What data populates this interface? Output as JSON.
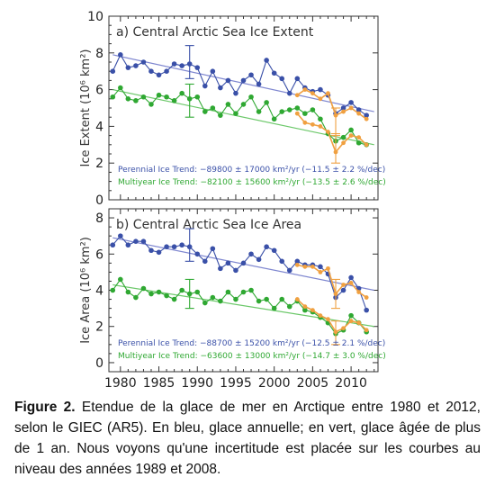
{
  "colors": {
    "perennial": "#3a50a8",
    "multiyear": "#2fa832",
    "perennial_trend": "#7f87d0",
    "multiyear_trend": "#6cc86a",
    "overlay": "#f0a040",
    "frame": "#333333"
  },
  "x_ticks": [
    "1980",
    "1985",
    "1990",
    "1995",
    "2000",
    "2005",
    "2010"
  ],
  "caption": {
    "label": "Figure 2.",
    "text": " Etendue de la glace de mer en Arctique entre 1980 et 2012, selon le GIEC (AR5). En bleu, glace annuelle; en vert, glace âgée de plus de 1 an. Nous voyons qu'une incertitude est placée sur les courbes au niveau des années 1989 et 2008."
  },
  "chart_data": [
    {
      "type": "line",
      "title": "a) Central Arctic Sea Ice Extent",
      "ylabel": "Ice Extent (10⁶ km²)",
      "xlabel": "",
      "xlim": [
        1978.5,
        2013.5
      ],
      "ylim": [
        0,
        10
      ],
      "yticks": [
        0,
        2,
        4,
        6,
        8,
        10
      ],
      "trend_texts": [
        "Perennial Ice Trend: −89800 ± 17000 km²/yr (−11.5 ± 2.2 %/dec)",
        "Multiyear Ice Trend: −82100 ± 15600 km²/yr (−13.5 ± 2.6 %/dec)"
      ],
      "series": [
        {
          "name": "Perennial Ice",
          "x": [
            1979,
            1980,
            1981,
            1982,
            1983,
            1984,
            1985,
            1986,
            1987,
            1988,
            1989,
            1990,
            1991,
            1992,
            1993,
            1994,
            1995,
            1996,
            1997,
            1998,
            1999,
            2000,
            2001,
            2002,
            2003,
            2004,
            2005,
            2006,
            2007,
            2008,
            2009,
            2010,
            2011,
            2012
          ],
          "values": [
            7.0,
            7.9,
            7.2,
            7.3,
            7.5,
            7.0,
            6.8,
            7.0,
            7.4,
            7.3,
            7.4,
            7.2,
            6.2,
            7.0,
            6.1,
            6.5,
            5.8,
            6.5,
            6.8,
            6.3,
            7.6,
            6.9,
            6.6,
            5.8,
            6.6,
            6.1,
            5.9,
            6.0,
            5.7,
            4.7,
            5.0,
            5.3,
            4.9,
            4.6
          ],
          "trend": [
            [
              1979,
              7.9
            ],
            [
              2013,
              4.8
            ]
          ],
          "error_bar": {
            "x": 1989,
            "low": 6.6,
            "high": 8.4
          }
        },
        {
          "name": "Multiyear Ice",
          "x": [
            1979,
            1980,
            1981,
            1982,
            1983,
            1984,
            1985,
            1986,
            1987,
            1988,
            1989,
            1990,
            1991,
            1992,
            1993,
            1994,
            1995,
            1996,
            1997,
            1998,
            1999,
            2000,
            2001,
            2002,
            2003,
            2004,
            2005,
            2006,
            2007,
            2008,
            2009,
            2010,
            2011,
            2012
          ],
          "values": [
            5.6,
            6.1,
            5.5,
            5.4,
            5.6,
            5.2,
            5.7,
            5.6,
            5.4,
            5.8,
            5.5,
            5.6,
            4.8,
            5.0,
            4.6,
            5.2,
            4.7,
            5.2,
            5.6,
            4.8,
            5.3,
            4.4,
            4.8,
            4.9,
            5.0,
            4.7,
            4.9,
            4.4,
            3.6,
            3.2,
            3.4,
            3.8,
            3.1,
            3.0
          ],
          "trend": [
            [
              1979,
              6.0
            ],
            [
              2013,
              3.0
            ]
          ],
          "error_bar": {
            "x": 1989,
            "low": 4.5,
            "high": 6.3
          }
        },
        {
          "name": "Perennial Ice (orange)",
          "x": [
            2003,
            2004,
            2005,
            2006,
            2007,
            2008,
            2009,
            2010,
            2011,
            2012
          ],
          "values": [
            5.7,
            6.0,
            5.8,
            5.5,
            5.8,
            4.6,
            4.8,
            5.0,
            4.7,
            4.4
          ],
          "error_bar": {
            "x": 2008,
            "low": 3.5,
            "high": 5.0
          }
        },
        {
          "name": "Multiyear Ice (orange)",
          "x": [
            2003,
            2004,
            2005,
            2006,
            2007,
            2008,
            2009,
            2010,
            2011,
            2012
          ],
          "values": [
            4.7,
            4.2,
            4.1,
            4.0,
            3.7,
            2.6,
            3.1,
            3.5,
            3.4,
            3.0
          ],
          "error_bar": {
            "x": 2008,
            "low": 2.0,
            "high": 3.6
          }
        }
      ]
    },
    {
      "type": "line",
      "title": "b) Central Arctic Sea Ice Area",
      "ylabel": "Ice Area (10⁶ km²)",
      "xlabel": "",
      "xlim": [
        1978.5,
        2013.5
      ],
      "ylim": [
        -0.5,
        8.5
      ],
      "yticks": [
        0,
        2,
        4,
        6,
        8
      ],
      "trend_texts": [
        "Perennial Ice Trend: −88700 ± 15200 km²/yr (−12.5 ± 2.1 %/dec)",
        "Multiyear Ice Trend: −63600 ± 13000 km²/yr (−14.7 ± 3.0 %/dec)"
      ],
      "series": [
        {
          "name": "Perennial Ice",
          "x": [
            1979,
            1980,
            1981,
            1982,
            1983,
            1984,
            1985,
            1986,
            1987,
            1988,
            1989,
            1990,
            1991,
            1992,
            1993,
            1994,
            1995,
            1996,
            1997,
            1998,
            1999,
            2000,
            2001,
            2002,
            2003,
            2004,
            2005,
            2006,
            2007,
            2008,
            2009,
            2010,
            2011,
            2012
          ],
          "values": [
            6.5,
            7.0,
            6.5,
            6.7,
            6.7,
            6.2,
            6.1,
            6.4,
            6.4,
            6.5,
            6.4,
            6.0,
            5.6,
            6.3,
            5.2,
            5.5,
            5.1,
            5.5,
            6.0,
            5.7,
            6.4,
            6.2,
            5.6,
            5.1,
            5.6,
            5.4,
            5.4,
            5.3,
            4.9,
            3.6,
            4.0,
            4.7,
            4.1,
            2.9
          ],
          "trend": [
            [
              1979,
              6.9
            ],
            [
              2013,
              4.0
            ]
          ],
          "error_bar": {
            "x": 1989,
            "low": 5.6,
            "high": 7.4
          }
        },
        {
          "name": "Multiyear Ice",
          "x": [
            1979,
            1980,
            1981,
            1982,
            1983,
            1984,
            1985,
            1986,
            1987,
            1988,
            1989,
            1990,
            1991,
            1992,
            1993,
            1994,
            1995,
            1996,
            1997,
            1998,
            1999,
            2000,
            2001,
            2002,
            2003,
            2004,
            2005,
            2006,
            2007,
            2008,
            2009,
            2010,
            2011,
            2012
          ],
          "values": [
            4.0,
            4.6,
            3.9,
            3.6,
            4.1,
            3.8,
            3.9,
            3.7,
            3.5,
            4.0,
            3.8,
            3.9,
            3.3,
            3.6,
            3.4,
            3.9,
            3.5,
            3.9,
            4.0,
            3.4,
            3.5,
            3.0,
            3.5,
            3.1,
            3.4,
            2.9,
            2.8,
            2.5,
            2.2,
            1.6,
            1.8,
            2.6,
            2.2,
            1.7
          ],
          "trend": [
            [
              1979,
              4.3
            ],
            [
              2013,
              2.0
            ]
          ],
          "error_bar": {
            "x": 1989,
            "low": 3.0,
            "high": 4.6
          }
        },
        {
          "name": "Perennial Ice (orange)",
          "x": [
            2003,
            2004,
            2005,
            2006,
            2007,
            2008,
            2009,
            2010,
            2011,
            2012
          ],
          "values": [
            5.4,
            5.3,
            5.3,
            5.0,
            5.2,
            3.8,
            4.3,
            4.4,
            3.9,
            3.6
          ],
          "error_bar": {
            "x": 2008,
            "low": 3.0,
            "high": 4.6
          }
        },
        {
          "name": "Multiyear Ice (orange)",
          "x": [
            2003,
            2004,
            2005,
            2006,
            2007,
            2008,
            2009,
            2010,
            2011,
            2012
          ],
          "values": [
            3.5,
            3.1,
            2.9,
            2.6,
            2.4,
            1.7,
            1.9,
            2.3,
            2.2,
            1.8
          ],
          "error_bar": {
            "x": 2008,
            "low": 1.0,
            "high": 2.3
          }
        }
      ]
    }
  ]
}
